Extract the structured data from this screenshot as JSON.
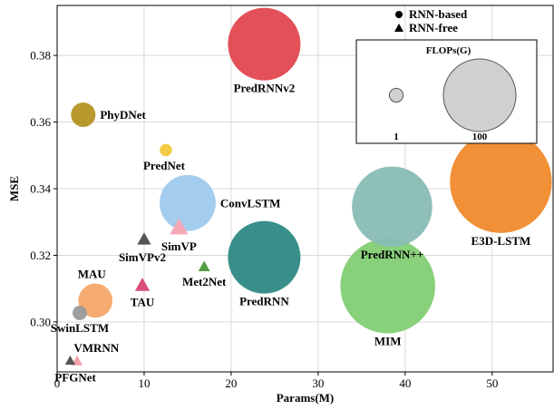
{
  "chart_data": {
    "type": "scatter",
    "title": "",
    "xlabel": "Params(M)",
    "ylabel": "MSE",
    "xlim": [
      0,
      57
    ],
    "ylim": [
      0.285,
      0.395
    ],
    "xticks": [
      "0",
      "10",
      "20",
      "30",
      "40",
      "50"
    ],
    "xtick_values": [
      0,
      10,
      20,
      30,
      40,
      50
    ],
    "yticks": [
      "0.30",
      "0.32",
      "0.34",
      "0.36",
      "0.38"
    ],
    "ytick_values": [
      0.3,
      0.32,
      0.34,
      0.36,
      0.38
    ],
    "grid": true,
    "legend": {
      "placement": "top-right",
      "markers": [
        {
          "label": "RNN-based",
          "marker": "circle"
        },
        {
          "label": "RNN-free",
          "marker": "triangle"
        }
      ],
      "size_title": "FLOPs(G)",
      "size_entries": [
        {
          "label": "1",
          "flops": 1
        },
        {
          "label": "100",
          "flops": 100
        }
      ]
    },
    "points": [
      {
        "name": "PredRNNv2",
        "x": 23.8,
        "y": 0.3834,
        "flops": 100,
        "marker": "circle",
        "color": "#e2474f",
        "label_pos": "below"
      },
      {
        "name": "PhyDNet",
        "x": 3.0,
        "y": 0.3622,
        "flops": 7,
        "marker": "circle",
        "color": "#b59423",
        "label_pos": "right"
      },
      {
        "name": "PredNet",
        "x": 12.5,
        "y": 0.3516,
        "flops": 0.6,
        "marker": "circle",
        "color": "#f0c93a",
        "label_pos": "below-left"
      },
      {
        "name": "ConvLSTM",
        "x": 15.0,
        "y": 0.3357,
        "flops": 56,
        "marker": "circle",
        "color": "#9ec9ec",
        "label_pos": "right"
      },
      {
        "name": "SimVPv2",
        "x": 10.0,
        "y": 0.3246,
        "flops": 1.5,
        "marker": "triangle",
        "color": "#555555",
        "label_pos": "below-left"
      },
      {
        "name": "SimVP",
        "x": 14.0,
        "y": 0.3281,
        "flops": 4,
        "marker": "triangle",
        "color": "#f7a8b8",
        "label_pos": "below"
      },
      {
        "name": "PredRNN",
        "x": 23.8,
        "y": 0.3194,
        "flops": 100,
        "marker": "circle",
        "color": "#2e8a84",
        "label_pos": "below"
      },
      {
        "name": "Met2Net",
        "x": 16.9,
        "y": 0.3164,
        "flops": 0.8,
        "marker": "triangle",
        "color": "#559b46",
        "label_pos": "below"
      },
      {
        "name": "MAU",
        "x": 4.4,
        "y": 0.3064,
        "flops": 17,
        "marker": "circle",
        "color": "#f6a869",
        "label_pos": "above-left"
      },
      {
        "name": "TAU",
        "x": 9.8,
        "y": 0.3108,
        "flops": 2,
        "marker": "triangle",
        "color": "#d94f7a",
        "label_pos": "below"
      },
      {
        "name": "SwinLSTM",
        "x": 2.6,
        "y": 0.3027,
        "flops": 1.2,
        "marker": "circle",
        "color": "#999999",
        "label_pos": "below"
      },
      {
        "name": "PredRNN++",
        "x": 38.5,
        "y": 0.3346,
        "flops": 125,
        "marker": "circle",
        "color": "#88bcb5",
        "label_pos": "below"
      },
      {
        "name": "E3D-LSTM",
        "x": 51.0,
        "y": 0.342,
        "flops": 210,
        "marker": "circle",
        "color": "#f08a2b",
        "label_pos": "below"
      },
      {
        "name": "MIM",
        "x": 38.0,
        "y": 0.3108,
        "flops": 180,
        "marker": "circle",
        "color": "#83cd74",
        "label_pos": "below"
      },
      {
        "name": "VMRNN",
        "x": 1.5,
        "y": 0.2882,
        "flops": 0.4,
        "marker": "triangle",
        "color": "#555555",
        "label_pos": "above-right"
      },
      {
        "name": "PFGNet",
        "x": 2.3,
        "y": 0.2881,
        "flops": 0.6,
        "marker": "triangle",
        "color": "#f2a0aa",
        "label_pos": "below-left",
        "label_color": "#e63a2e"
      }
    ]
  }
}
